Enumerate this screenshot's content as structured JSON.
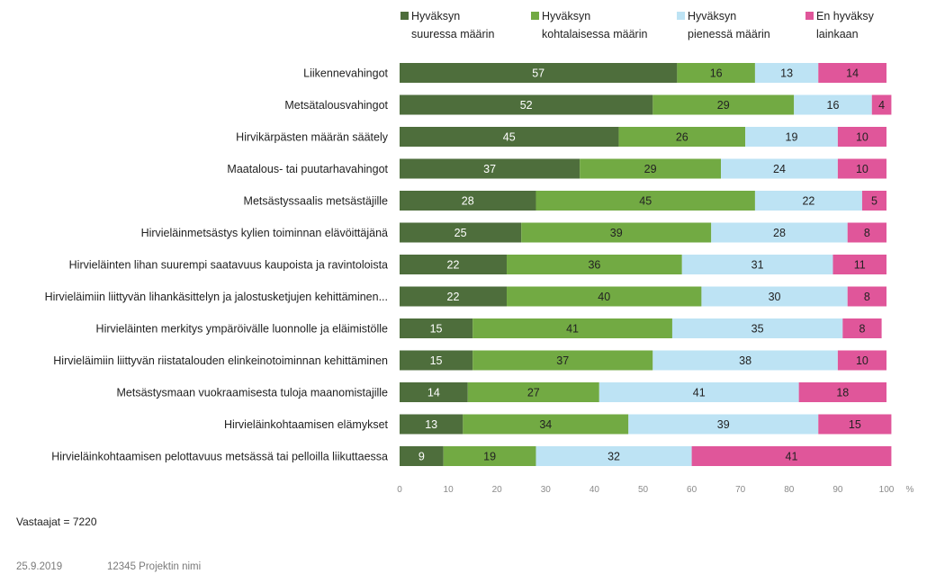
{
  "chart_data": {
    "type": "bar",
    "orientation": "horizontal",
    "stacked": true,
    "categories": [
      "Liikennevahingot",
      "Metsätalousvahingot",
      "Hirvikärpästen määrän säätely",
      "Maatalous- tai puutarhavahingot",
      "Metsästyssaalis metsästäjille",
      "Hirvieläinmetsästys kylien toiminnan elävöittäjänä",
      "Hirvieläinten lihan suurempi saatavuus kaupoista ja ravintoloista",
      "Hirvieläimiin liittyvän lihankäsittelyn ja jalostusketjujen kehittäminen...",
      "Hirvieläinten merkitys ympäröivälle luonnolle ja eläimistölle",
      "Hirvieläimiin liittyvän riistatalouden elinkeinotoiminnan kehittäminen",
      "Metsästysmaan vuokraamisesta tuloja maanomistajille",
      "Hirvieläinkohtaamisen elämykset",
      "Hirvieläinkohtaamisen pelottavuus metsässä tai pelloilla liikuttaessa"
    ],
    "series": [
      {
        "name": "Hyväksyn suuressa määrin",
        "name_lines": [
          "Hyväksyn",
          "suuressa määrin"
        ],
        "color": "#4e6e3c",
        "label_color": "#ffffff",
        "values": [
          57,
          52,
          45,
          37,
          28,
          25,
          22,
          22,
          15,
          15,
          14,
          13,
          9
        ]
      },
      {
        "name": "Hyväksyn kohtalaisessa määrin",
        "name_lines": [
          "Hyväksyn",
          "kohtalaisessa määrin"
        ],
        "color": "#72aa43",
        "label_color": "#222222",
        "values": [
          16,
          29,
          26,
          29,
          45,
          39,
          36,
          40,
          41,
          37,
          27,
          34,
          19
        ]
      },
      {
        "name": "Hyväksyn pienessä määrin",
        "name_lines": [
          "Hyväksyn",
          "pienessä määrin"
        ],
        "color": "#bde3f4",
        "label_color": "#222222",
        "values": [
          13,
          16,
          19,
          24,
          22,
          28,
          31,
          30,
          35,
          38,
          41,
          39,
          32
        ]
      },
      {
        "name": "En hyväksy lainkaan",
        "name_lines": [
          "En hyväksy",
          "lainkaan"
        ],
        "color": "#e0569a",
        "label_color": "#222222",
        "values": [
          14,
          4,
          10,
          10,
          5,
          8,
          11,
          8,
          8,
          10,
          18,
          15,
          41
        ]
      }
    ],
    "xlim": [
      0,
      100
    ],
    "xticks": [
      0,
      10,
      20,
      30,
      40,
      50,
      60,
      70,
      80,
      90,
      100
    ],
    "xunit": "%",
    "legend_position": "top",
    "grid": false
  },
  "notes": {
    "respondents": "Vastaajat = 7220"
  },
  "footer": {
    "date": "25.9.2019",
    "project": "12345 Projektin nimi"
  }
}
